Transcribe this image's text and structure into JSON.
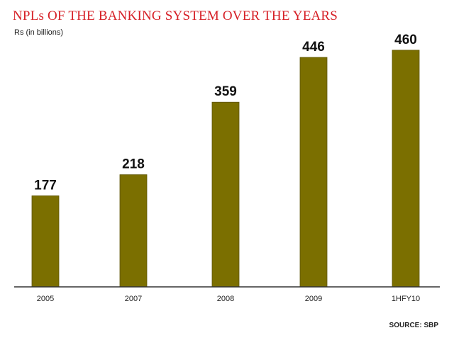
{
  "chart_data": {
    "type": "bar",
    "title": "NPLs OF THE BANKING SYSTEM OVER THE YEARS",
    "ylabel": "Rs (in billions)",
    "categories": [
      "2005",
      "2007",
      "2008",
      "2009",
      "1HFY10"
    ],
    "values": [
      177,
      218,
      359,
      446,
      460
    ],
    "ylim": [
      0,
      530
    ],
    "grid": false,
    "legend": "none",
    "source": "SOURCE: SBP"
  },
  "colors": {
    "bar": "#7b6f00",
    "bar_edge": "#5e5500",
    "title": "#d61f26",
    "axis": "#333333",
    "label": "#111111"
  }
}
